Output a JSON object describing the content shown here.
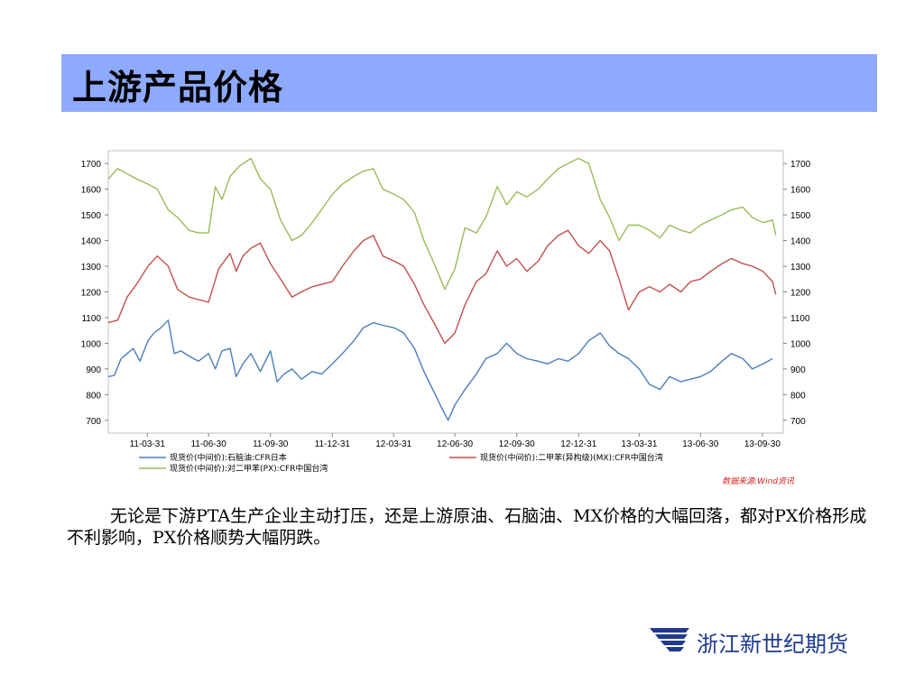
{
  "slide": {
    "title": "上游产品价格",
    "paragraph": "无论是下游PTA生产企业主动打压，还是上游原油、石脑油、MX价格的大幅回落，都对PX价格形成不利影响，PX价格顺势大幅阴跌。",
    "company": "浙江新世纪期货",
    "logo_icon": "company-logo-icon"
  },
  "chart_data": {
    "type": "line",
    "x_ticks": [
      "11-03-31",
      "11-06-30",
      "11-09-30",
      "11-12-31",
      "12-03-31",
      "12-06-30",
      "12-09-30",
      "12-12-31",
      "13-03-31",
      "13-06-30",
      "13-09-30"
    ],
    "y_ticks": [
      700,
      800,
      900,
      1000,
      1100,
      1200,
      1300,
      1400,
      1500,
      1600,
      1700
    ],
    "ylim": [
      650,
      1750
    ],
    "xlim": [
      "2011-02-01",
      "2013-10-31"
    ],
    "grid": false,
    "legend_position": "bottom",
    "source_note": "数据来源:Wind资讯",
    "series": [
      {
        "name": "现货价(中间价):石脑油:CFR日本",
        "color": "#4a7ebb",
        "points": [
          [
            "2011-02-01",
            870
          ],
          [
            "2011-02-10",
            875
          ],
          [
            "2011-02-20",
            940
          ],
          [
            "2011-03-01",
            960
          ],
          [
            "2011-03-10",
            980
          ],
          [
            "2011-03-20",
            930
          ],
          [
            "2011-04-01",
            1010
          ],
          [
            "2011-04-10",
            1040
          ],
          [
            "2011-04-20",
            1060
          ],
          [
            "2011-05-01",
            1090
          ],
          [
            "2011-05-10",
            960
          ],
          [
            "2011-05-20",
            970
          ],
          [
            "2011-06-01",
            950
          ],
          [
            "2011-06-15",
            930
          ],
          [
            "2011-06-30",
            960
          ],
          [
            "2011-07-10",
            900
          ],
          [
            "2011-07-20",
            970
          ],
          [
            "2011-08-01",
            980
          ],
          [
            "2011-08-10",
            870
          ],
          [
            "2011-08-20",
            920
          ],
          [
            "2011-09-01",
            960
          ],
          [
            "2011-09-15",
            890
          ],
          [
            "2011-09-30",
            970
          ],
          [
            "2011-10-10",
            850
          ],
          [
            "2011-10-20",
            880
          ],
          [
            "2011-11-01",
            900
          ],
          [
            "2011-11-15",
            860
          ],
          [
            "2011-12-01",
            890
          ],
          [
            "2011-12-15",
            880
          ],
          [
            "2011-12-31",
            920
          ],
          [
            "2012-01-15",
            960
          ],
          [
            "2012-02-01",
            1010
          ],
          [
            "2012-02-15",
            1060
          ],
          [
            "2012-03-01",
            1080
          ],
          [
            "2012-03-15",
            1070
          ],
          [
            "2012-04-01",
            1060
          ],
          [
            "2012-04-15",
            1040
          ],
          [
            "2012-05-01",
            980
          ],
          [
            "2012-05-15",
            890
          ],
          [
            "2012-06-01",
            800
          ],
          [
            "2012-06-10",
            750
          ],
          [
            "2012-06-20",
            700
          ],
          [
            "2012-06-30",
            760
          ],
          [
            "2012-07-15",
            820
          ],
          [
            "2012-08-01",
            880
          ],
          [
            "2012-08-15",
            940
          ],
          [
            "2012-09-01",
            960
          ],
          [
            "2012-09-15",
            1000
          ],
          [
            "2012-09-30",
            960
          ],
          [
            "2012-10-15",
            940
          ],
          [
            "2012-11-01",
            930
          ],
          [
            "2012-11-15",
            920
          ],
          [
            "2012-12-01",
            940
          ],
          [
            "2012-12-15",
            930
          ],
          [
            "2012-12-31",
            960
          ],
          [
            "2013-01-15",
            1010
          ],
          [
            "2013-02-01",
            1040
          ],
          [
            "2013-02-15",
            990
          ],
          [
            "2013-03-01",
            960
          ],
          [
            "2013-03-15",
            940
          ],
          [
            "2013-03-31",
            900
          ],
          [
            "2013-04-15",
            840
          ],
          [
            "2013-05-01",
            820
          ],
          [
            "2013-05-15",
            870
          ],
          [
            "2013-06-01",
            850
          ],
          [
            "2013-06-15",
            860
          ],
          [
            "2013-06-30",
            870
          ],
          [
            "2013-07-15",
            890
          ],
          [
            "2013-08-01",
            930
          ],
          [
            "2013-08-15",
            960
          ],
          [
            "2013-09-01",
            940
          ],
          [
            "2013-09-15",
            900
          ],
          [
            "2013-10-01",
            920
          ],
          [
            "2013-10-15",
            940
          ]
        ]
      },
      {
        "name": "现货价(中间价):二甲苯(异构级)(MX):CFR中国台湾",
        "color": "#c0504d",
        "points": [
          [
            "2011-02-01",
            1080
          ],
          [
            "2011-02-15",
            1090
          ],
          [
            "2011-03-01",
            1180
          ],
          [
            "2011-03-15",
            1230
          ],
          [
            "2011-04-01",
            1300
          ],
          [
            "2011-04-15",
            1340
          ],
          [
            "2011-05-01",
            1300
          ],
          [
            "2011-05-15",
            1210
          ],
          [
            "2011-06-01",
            1180
          ],
          [
            "2011-06-15",
            1170
          ],
          [
            "2011-06-30",
            1160
          ],
          [
            "2011-07-15",
            1290
          ],
          [
            "2011-08-01",
            1350
          ],
          [
            "2011-08-10",
            1280
          ],
          [
            "2011-08-20",
            1340
          ],
          [
            "2011-09-01",
            1370
          ],
          [
            "2011-09-15",
            1390
          ],
          [
            "2011-09-30",
            1310
          ],
          [
            "2011-10-15",
            1250
          ],
          [
            "2011-11-01",
            1180
          ],
          [
            "2011-11-15",
            1200
          ],
          [
            "2011-12-01",
            1220
          ],
          [
            "2011-12-31",
            1240
          ],
          [
            "2012-01-15",
            1300
          ],
          [
            "2012-02-01",
            1360
          ],
          [
            "2012-02-15",
            1400
          ],
          [
            "2012-03-01",
            1420
          ],
          [
            "2012-03-15",
            1340
          ],
          [
            "2012-04-01",
            1320
          ],
          [
            "2012-04-15",
            1300
          ],
          [
            "2012-05-01",
            1230
          ],
          [
            "2012-05-15",
            1150
          ],
          [
            "2012-06-01",
            1070
          ],
          [
            "2012-06-15",
            1000
          ],
          [
            "2012-06-30",
            1040
          ],
          [
            "2012-07-15",
            1150
          ],
          [
            "2012-08-01",
            1240
          ],
          [
            "2012-08-15",
            1270
          ],
          [
            "2012-09-01",
            1360
          ],
          [
            "2012-09-15",
            1300
          ],
          [
            "2012-09-30",
            1330
          ],
          [
            "2012-10-15",
            1280
          ],
          [
            "2012-11-01",
            1320
          ],
          [
            "2012-11-15",
            1380
          ],
          [
            "2012-12-01",
            1420
          ],
          [
            "2012-12-15",
            1440
          ],
          [
            "2012-12-31",
            1380
          ],
          [
            "2013-01-15",
            1350
          ],
          [
            "2013-02-01",
            1400
          ],
          [
            "2013-02-15",
            1360
          ],
          [
            "2013-03-01",
            1250
          ],
          [
            "2013-03-15",
            1130
          ],
          [
            "2013-03-31",
            1200
          ],
          [
            "2013-04-15",
            1220
          ],
          [
            "2013-05-01",
            1200
          ],
          [
            "2013-05-15",
            1230
          ],
          [
            "2013-06-01",
            1200
          ],
          [
            "2013-06-15",
            1240
          ],
          [
            "2013-06-30",
            1250
          ],
          [
            "2013-07-15",
            1280
          ],
          [
            "2013-08-01",
            1310
          ],
          [
            "2013-08-15",
            1330
          ],
          [
            "2013-09-01",
            1310
          ],
          [
            "2013-09-15",
            1300
          ],
          [
            "2013-10-01",
            1280
          ],
          [
            "2013-10-15",
            1240
          ],
          [
            "2013-10-20",
            1190
          ]
        ]
      },
      {
        "name": "现货价(中间价):对二甲苯(PX):CFR中国台湾",
        "color": "#9bbb59",
        "points": [
          [
            "2011-02-01",
            1640
          ],
          [
            "2011-02-15",
            1680
          ],
          [
            "2011-03-01",
            1660
          ],
          [
            "2011-03-15",
            1640
          ],
          [
            "2011-04-01",
            1620
          ],
          [
            "2011-04-15",
            1600
          ],
          [
            "2011-05-01",
            1520
          ],
          [
            "2011-05-15",
            1490
          ],
          [
            "2011-06-01",
            1440
          ],
          [
            "2011-06-15",
            1430
          ],
          [
            "2011-06-30",
            1430
          ],
          [
            "2011-07-10",
            1610
          ],
          [
            "2011-07-20",
            1560
          ],
          [
            "2011-08-01",
            1650
          ],
          [
            "2011-08-15",
            1690
          ],
          [
            "2011-09-01",
            1720
          ],
          [
            "2011-09-15",
            1640
          ],
          [
            "2011-09-30",
            1600
          ],
          [
            "2011-10-15",
            1480
          ],
          [
            "2011-11-01",
            1400
          ],
          [
            "2011-11-15",
            1420
          ],
          [
            "2011-12-01",
            1470
          ],
          [
            "2011-12-31",
            1580
          ],
          [
            "2012-01-15",
            1620
          ],
          [
            "2012-02-01",
            1650
          ],
          [
            "2012-02-15",
            1670
          ],
          [
            "2012-03-01",
            1680
          ],
          [
            "2012-03-15",
            1600
          ],
          [
            "2012-04-01",
            1580
          ],
          [
            "2012-04-15",
            1560
          ],
          [
            "2012-05-01",
            1510
          ],
          [
            "2012-05-15",
            1400
          ],
          [
            "2012-06-01",
            1300
          ],
          [
            "2012-06-15",
            1210
          ],
          [
            "2012-06-30",
            1290
          ],
          [
            "2012-07-15",
            1450
          ],
          [
            "2012-08-01",
            1430
          ],
          [
            "2012-08-15",
            1490
          ],
          [
            "2012-09-01",
            1610
          ],
          [
            "2012-09-15",
            1540
          ],
          [
            "2012-09-30",
            1590
          ],
          [
            "2012-10-15",
            1570
          ],
          [
            "2012-11-01",
            1600
          ],
          [
            "2012-11-15",
            1640
          ],
          [
            "2012-12-01",
            1680
          ],
          [
            "2012-12-15",
            1700
          ],
          [
            "2012-12-31",
            1720
          ],
          [
            "2013-01-15",
            1700
          ],
          [
            "2013-02-01",
            1560
          ],
          [
            "2013-02-15",
            1490
          ],
          [
            "2013-03-01",
            1400
          ],
          [
            "2013-03-15",
            1460
          ],
          [
            "2013-03-31",
            1460
          ],
          [
            "2013-04-15",
            1440
          ],
          [
            "2013-05-01",
            1410
          ],
          [
            "2013-05-15",
            1460
          ],
          [
            "2013-06-01",
            1440
          ],
          [
            "2013-06-15",
            1430
          ],
          [
            "2013-06-30",
            1460
          ],
          [
            "2013-07-15",
            1480
          ],
          [
            "2013-08-01",
            1500
          ],
          [
            "2013-08-15",
            1520
          ],
          [
            "2013-09-01",
            1530
          ],
          [
            "2013-09-15",
            1490
          ],
          [
            "2013-10-01",
            1470
          ],
          [
            "2013-10-15",
            1480
          ],
          [
            "2013-10-20",
            1420
          ]
        ]
      }
    ]
  }
}
